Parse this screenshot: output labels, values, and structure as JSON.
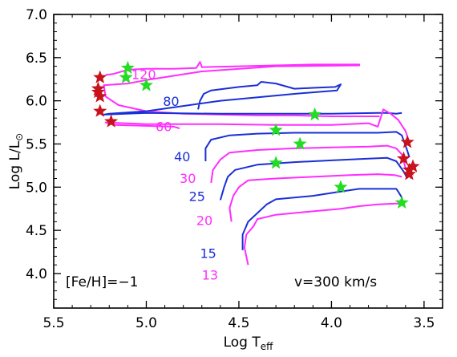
{
  "chart_data": {
    "type": "line",
    "xlabel_main": "Log T",
    "xlabel_sub": "eff",
    "ylabel_main": "Log L/L",
    "ylabel_symbol": "⊙",
    "xlim": [
      5.5,
      3.4
    ],
    "ylim": [
      3.6,
      7.0
    ],
    "x_ticks": [
      5.5,
      5.0,
      4.5,
      4.0,
      3.5
    ],
    "y_ticks": [
      4.0,
      4.5,
      5.0,
      5.5,
      6.0,
      6.5,
      7.0
    ],
    "x_tick_labels": [
      "5.5",
      "5.0",
      "4.5",
      "4.0",
      "3.5"
    ],
    "y_tick_labels": [
      "4.0",
      "4.5",
      "5.0",
      "5.5",
      "6.0",
      "6.5",
      "7.0"
    ],
    "annotations": {
      "metallicity": "[Fe/H]=−1",
      "velocity": "v=300 km/s"
    },
    "colors": {
      "magenta": "#ff2dff",
      "blue": "#1a2fd6",
      "red_star": "#c8121c",
      "green_star": "#22dd22"
    },
    "series": [
      {
        "name": "120",
        "color": "magenta",
        "label": {
          "text": "120",
          "x": 5.08,
          "y": 6.25
        },
        "points": [
          [
            5.22,
            6.3
          ],
          [
            5.18,
            6.31
          ],
          [
            5.1,
            6.36
          ],
          [
            5.0,
            6.37
          ],
          [
            4.85,
            6.37
          ],
          [
            4.73,
            6.38
          ],
          [
            4.71,
            6.45
          ],
          [
            4.7,
            6.39
          ],
          [
            4.5,
            6.4
          ],
          [
            4.3,
            6.41
          ],
          [
            4.1,
            6.42
          ],
          [
            3.95,
            6.42
          ],
          [
            3.85,
            6.42
          ],
          [
            3.85,
            6.41
          ],
          [
            4.3,
            6.4
          ],
          [
            4.7,
            6.34
          ],
          [
            5.0,
            6.24
          ],
          [
            5.1,
            6.2
          ],
          [
            5.23,
            6.18
          ],
          [
            5.22,
            6.05
          ],
          [
            5.15,
            5.95
          ],
          [
            5.0,
            5.88
          ],
          [
            4.8,
            5.85
          ],
          [
            4.6,
            5.84
          ],
          [
            4.4,
            5.83
          ],
          [
            4.2,
            5.83
          ],
          [
            4.0,
            5.82
          ],
          [
            3.78,
            5.82
          ],
          [
            3.74,
            5.82
          ]
        ]
      },
      {
        "name": "80",
        "color": "blue",
        "label": {
          "text": "80",
          "x": 4.91,
          "y": 5.94
        },
        "points": [
          [
            4.72,
            5.9
          ],
          [
            4.71,
            6.0
          ],
          [
            4.69,
            6.08
          ],
          [
            4.65,
            6.12
          ],
          [
            4.5,
            6.16
          ],
          [
            4.4,
            6.18
          ],
          [
            4.38,
            6.22
          ],
          [
            4.3,
            6.2
          ],
          [
            4.2,
            6.14
          ],
          [
            4.1,
            6.15
          ],
          [
            3.98,
            6.16
          ],
          [
            3.95,
            6.19
          ],
          [
            3.97,
            6.12
          ],
          [
            4.2,
            6.08
          ],
          [
            4.6,
            6.0
          ],
          [
            5.0,
            5.88
          ],
          [
            5.2,
            5.85
          ],
          [
            5.23,
            5.84
          ],
          [
            5.0,
            5.86
          ],
          [
            4.6,
            5.85
          ],
          [
            4.3,
            5.85
          ],
          [
            4.0,
            5.85
          ],
          [
            3.75,
            5.86
          ],
          [
            3.7,
            5.86
          ],
          [
            3.65,
            5.85
          ],
          [
            3.62,
            5.86
          ]
        ]
      },
      {
        "name": "60",
        "color": "magenta",
        "label": {
          "text": "60",
          "x": 4.95,
          "y": 5.65
        },
        "points": [
          [
            4.82,
            5.68
          ],
          [
            4.85,
            5.7
          ],
          [
            5.0,
            5.71
          ],
          [
            5.17,
            5.72
          ],
          [
            5.22,
            5.75
          ],
          [
            5.0,
            5.73
          ],
          [
            4.6,
            5.73
          ],
          [
            4.3,
            5.72
          ],
          [
            4.0,
            5.72
          ],
          [
            3.8,
            5.74
          ],
          [
            3.75,
            5.7
          ],
          [
            3.72,
            5.9
          ],
          [
            3.68,
            5.85
          ],
          [
            3.64,
            5.78
          ],
          [
            3.6,
            5.65
          ],
          [
            3.58,
            5.52
          ]
        ]
      },
      {
        "name": "40",
        "color": "blue",
        "label": {
          "text": "40",
          "x": 4.85,
          "y": 5.3
        },
        "points": [
          [
            4.68,
            5.3
          ],
          [
            4.68,
            5.45
          ],
          [
            4.65,
            5.55
          ],
          [
            4.55,
            5.6
          ],
          [
            4.4,
            5.62
          ],
          [
            4.2,
            5.63
          ],
          [
            4.0,
            5.63
          ],
          [
            3.75,
            5.63
          ],
          [
            3.65,
            5.64
          ],
          [
            3.62,
            5.6
          ],
          [
            3.59,
            5.42
          ],
          [
            3.58,
            5.35
          ]
        ]
      },
      {
        "name": "30",
        "color": "magenta",
        "label": {
          "text": "30",
          "x": 4.82,
          "y": 5.05
        },
        "points": [
          [
            4.65,
            5.05
          ],
          [
            4.64,
            5.2
          ],
          [
            4.6,
            5.32
          ],
          [
            4.55,
            5.4
          ],
          [
            4.4,
            5.43
          ],
          [
            4.2,
            5.45
          ],
          [
            4.0,
            5.46
          ],
          [
            3.8,
            5.47
          ],
          [
            3.7,
            5.48
          ],
          [
            3.65,
            5.45
          ],
          [
            3.62,
            5.38
          ],
          [
            3.6,
            5.22
          ],
          [
            3.57,
            5.1
          ]
        ]
      },
      {
        "name": "25",
        "color": "blue",
        "label": {
          "text": "25",
          "x": 4.77,
          "y": 4.84
        },
        "points": [
          [
            4.6,
            4.85
          ],
          [
            4.58,
            5.0
          ],
          [
            4.56,
            5.12
          ],
          [
            4.52,
            5.2
          ],
          [
            4.4,
            5.26
          ],
          [
            4.2,
            5.29
          ],
          [
            4.0,
            5.31
          ],
          [
            3.8,
            5.33
          ],
          [
            3.7,
            5.34
          ],
          [
            3.65,
            5.3
          ],
          [
            3.61,
            5.18
          ],
          [
            3.59,
            5.1
          ]
        ]
      },
      {
        "name": "20",
        "color": "magenta",
        "label": {
          "text": "20",
          "x": 4.73,
          "y": 4.56
        },
        "points": [
          [
            4.54,
            4.6
          ],
          [
            4.55,
            4.76
          ],
          [
            4.53,
            4.9
          ],
          [
            4.5,
            5.0
          ],
          [
            4.45,
            5.08
          ],
          [
            4.3,
            5.1
          ],
          [
            4.1,
            5.12
          ],
          [
            3.9,
            5.14
          ],
          [
            3.75,
            5.15
          ],
          [
            3.66,
            5.14
          ],
          [
            3.62,
            5.12
          ]
        ]
      },
      {
        "name": "15",
        "color": "blue",
        "label": {
          "text": "15",
          "x": 4.71,
          "y": 4.18
        },
        "points": [
          [
            4.48,
            4.27
          ],
          [
            4.48,
            4.45
          ],
          [
            4.45,
            4.6
          ],
          [
            4.4,
            4.7
          ],
          [
            4.35,
            4.8
          ],
          [
            4.3,
            4.86
          ],
          [
            4.1,
            4.9
          ],
          [
            3.95,
            4.95
          ],
          [
            3.85,
            4.98
          ],
          [
            3.72,
            4.98
          ],
          [
            3.65,
            4.98
          ],
          [
            3.64,
            4.95
          ],
          [
            3.62,
            4.88
          ],
          [
            3.62,
            4.82
          ]
        ]
      },
      {
        "name": "13",
        "color": "magenta",
        "label": {
          "text": "13",
          "x": 4.7,
          "y": 3.93
        },
        "points": [
          [
            4.45,
            4.1
          ],
          [
            4.47,
            4.3
          ],
          [
            4.46,
            4.45
          ],
          [
            4.42,
            4.55
          ],
          [
            4.4,
            4.63
          ],
          [
            4.3,
            4.68
          ],
          [
            4.1,
            4.72
          ],
          [
            3.95,
            4.75
          ],
          [
            3.85,
            4.78
          ],
          [
            3.75,
            4.8
          ],
          [
            3.65,
            4.81
          ],
          [
            3.62,
            4.81
          ]
        ]
      }
    ],
    "red_stars": [
      [
        5.25,
        6.27
      ],
      [
        5.26,
        6.14
      ],
      [
        5.26,
        6.1
      ],
      [
        5.25,
        6.05
      ],
      [
        5.25,
        5.88
      ],
      [
        5.19,
        5.76
      ],
      [
        3.59,
        5.52
      ],
      [
        3.61,
        5.33
      ],
      [
        3.56,
        5.24
      ],
      [
        3.58,
        5.2
      ],
      [
        3.58,
        5.15
      ]
    ],
    "green_stars": [
      [
        5.1,
        6.38
      ],
      [
        5.11,
        6.27
      ],
      [
        5.0,
        6.18
      ],
      [
        4.09,
        5.84
      ],
      [
        4.3,
        5.66
      ],
      [
        4.17,
        5.5
      ],
      [
        4.3,
        5.28
      ],
      [
        3.95,
        5.0
      ],
      [
        3.62,
        4.82
      ]
    ]
  }
}
